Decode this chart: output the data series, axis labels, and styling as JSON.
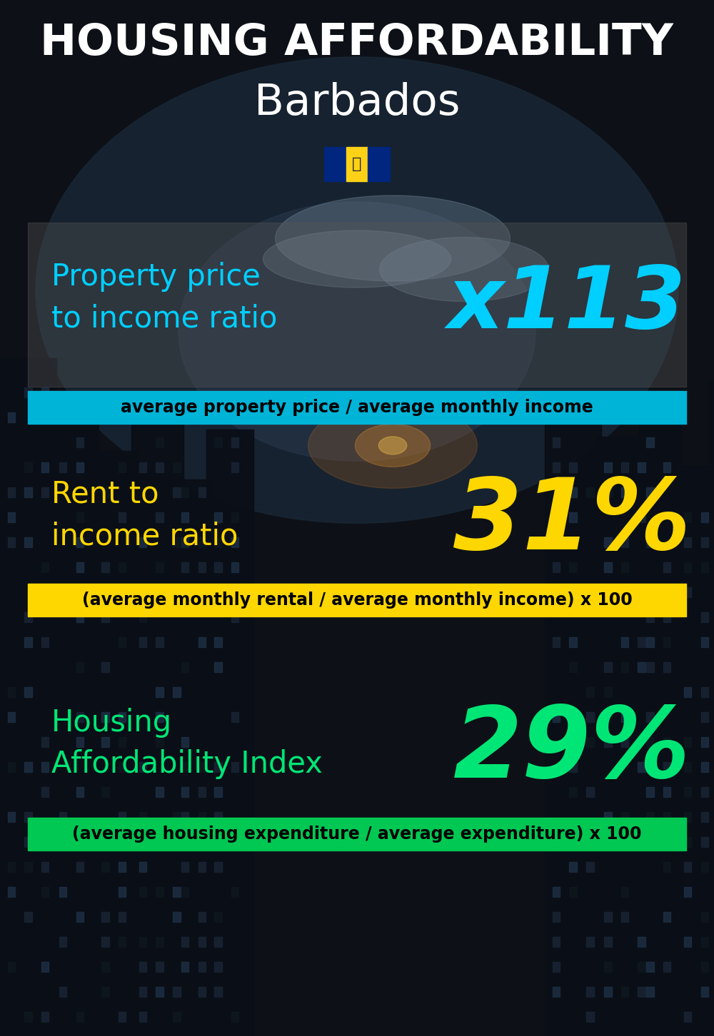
{
  "title_line1": "HOUSING AFFORDABILITY",
  "title_line2": "Barbados",
  "bg_color": "#0d1117",
  "section1_label": "Property price\nto income ratio",
  "section1_value": "x113",
  "section1_label_color": "#00cfff",
  "section1_value_color": "#00cfff",
  "section1_banner": "average property price / average monthly income",
  "section1_banner_bg": "#00b4d8",
  "section1_banner_text_color": "#000000",
  "section2_label": "Rent to\nincome ratio",
  "section2_value": "31%",
  "section2_label_color": "#ffd700",
  "section2_value_color": "#ffd700",
  "section2_banner": "(average monthly rental / average monthly income) x 100",
  "section2_banner_bg": "#ffd700",
  "section2_banner_text_color": "#000000",
  "section3_label": "Housing\nAffordability Index",
  "section3_value": "29%",
  "section3_label_color": "#00e676",
  "section3_value_color": "#00e676",
  "section3_banner": "(average housing expenditure / average expenditure) x 100",
  "section3_banner_bg": "#00c853",
  "section3_banner_text_color": "#000000",
  "flag_blue": "#00267F",
  "flag_yellow": "#FCD116",
  "fig_width": 10.0,
  "fig_height": 14.52
}
